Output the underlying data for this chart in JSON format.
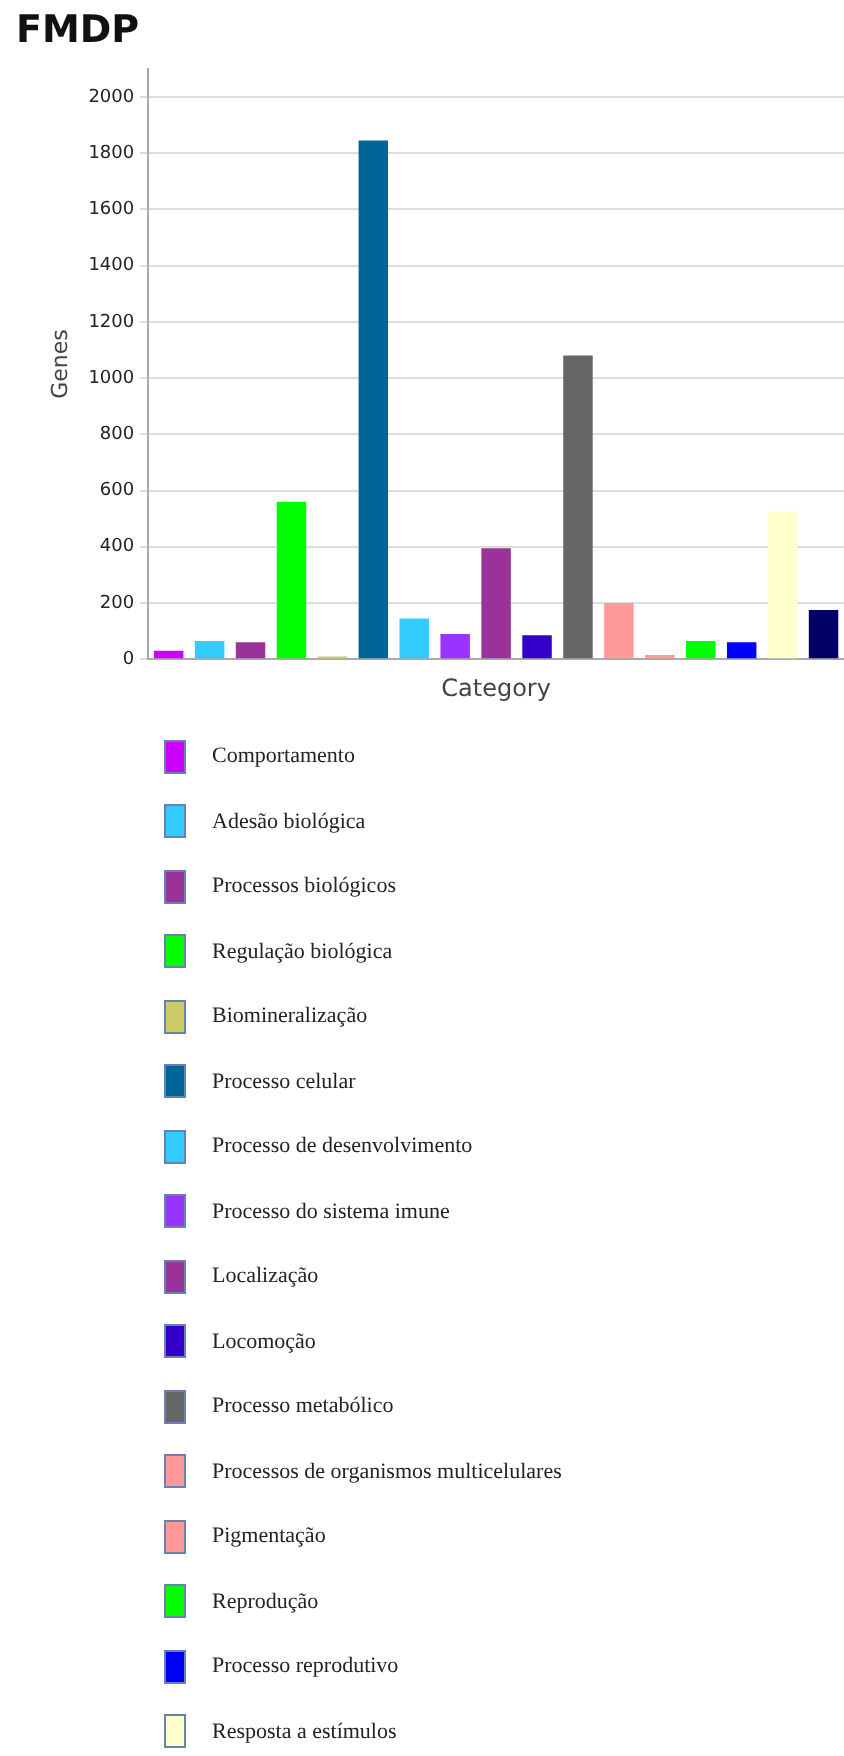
{
  "chart_data": {
    "type": "bar",
    "title": "FMDP",
    "xlabel": "Category",
    "ylabel": "Genes",
    "categories": [
      null
    ],
    "series": [
      {
        "name": "Comportamento",
        "color": "#cc00ff",
        "values": [
          30
        ]
      },
      {
        "name": "Adesão biológica",
        "color": "#33ccff",
        "values": [
          65
        ]
      },
      {
        "name": "Processos biológicos",
        "color": "#993399",
        "values": [
          60
        ]
      },
      {
        "name": "Regulação biológica",
        "color": "#00ff00",
        "values": [
          560
        ]
      },
      {
        "name": "Biomineralização",
        "color": "#cccc66",
        "values": [
          10
        ]
      },
      {
        "name": "Processo celular",
        "color": "#006699",
        "values": [
          1845
        ]
      },
      {
        "name": "Processo de desenvolvimento",
        "color": "#33ccff",
        "values": [
          145
        ]
      },
      {
        "name": "Processo do sistema imune",
        "color": "#9933ff",
        "values": [
          90
        ]
      },
      {
        "name": "Localização",
        "color": "#993399",
        "values": [
          395
        ]
      },
      {
        "name": "Locomoção",
        "color": "#3300cc",
        "values": [
          85
        ]
      },
      {
        "name": "Processo metabólico",
        "color": "#666666",
        "values": [
          1080
        ]
      },
      {
        "name": "Processos de organismos multicelulares",
        "color": "#ff9999",
        "values": [
          200
        ]
      },
      {
        "name": "Pigmentação",
        "color": "#ff9999",
        "values": [
          15
        ]
      },
      {
        "name": "Reprodução",
        "color": "#00ff00",
        "values": [
          65
        ]
      },
      {
        "name": "Processo reprodutivo",
        "color": "#0000ff",
        "values": [
          60
        ]
      },
      {
        "name": "Resposta a estímulos",
        "color": "#ffffcc",
        "values": [
          525
        ]
      },
      {
        "color": "#000066",
        "values": [
          175
        ]
      }
    ],
    "ylim": [
      0,
      2100
    ],
    "yticks": [
      0,
      200,
      400,
      600,
      800,
      1000,
      1200,
      1400,
      1600,
      1800,
      2000
    ],
    "grid": "y",
    "legend": "bottom"
  }
}
